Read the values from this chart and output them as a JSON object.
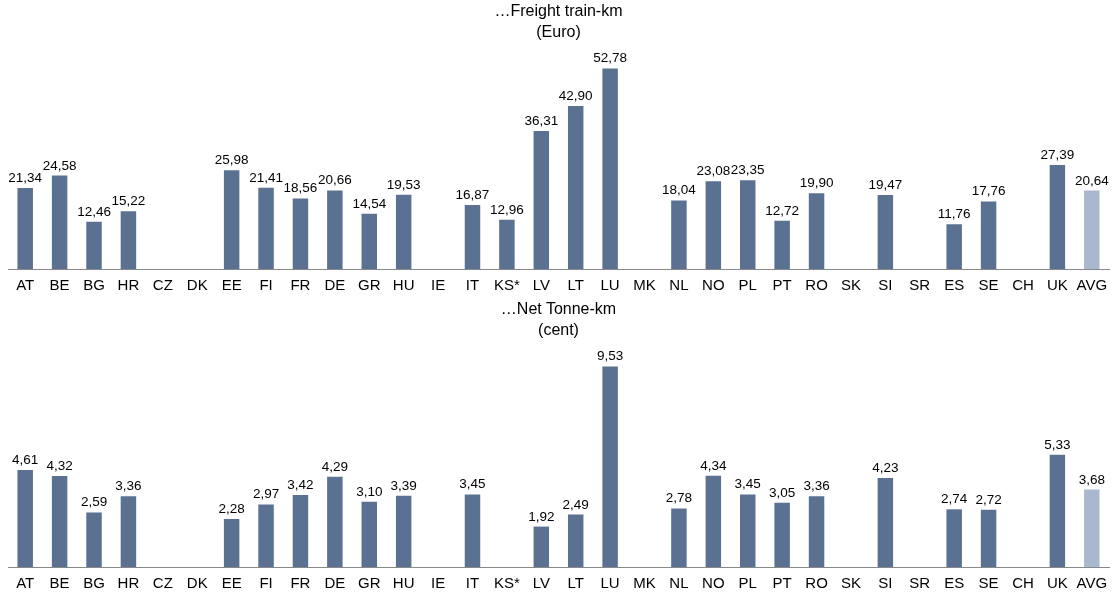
{
  "chart_data": [
    {
      "type": "bar",
      "title": "…Freight train-km",
      "subtitle": "(Euro)",
      "categories": [
        "AT",
        "BE",
        "BG",
        "HR",
        "CZ",
        "DK",
        "EE",
        "FI",
        "FR",
        "DE",
        "GR",
        "HU",
        "IE",
        "IT",
        "KS*",
        "LV",
        "LT",
        "LU",
        "MK",
        "NL",
        "NO",
        "PL",
        "PT",
        "RO",
        "SK",
        "SI",
        "SR",
        "ES",
        "SE",
        "CH",
        "UK",
        "AVG"
      ],
      "values": [
        21.34,
        24.58,
        12.46,
        15.22,
        null,
        null,
        25.98,
        21.41,
        18.56,
        20.66,
        14.54,
        19.53,
        null,
        16.87,
        12.96,
        36.31,
        42.9,
        52.78,
        null,
        18.04,
        23.08,
        23.35,
        12.72,
        19.9,
        null,
        19.47,
        null,
        11.76,
        17.76,
        null,
        27.39,
        20.64
      ],
      "value_labels": [
        "21,34",
        "24,58",
        "12,46",
        "15,22",
        null,
        null,
        "25,98",
        "21,41",
        "18,56",
        "20,66",
        "14,54",
        "19,53",
        null,
        "16,87",
        "12,96",
        "36,31",
        "42,90",
        "52,78",
        null,
        "18,04",
        "23,08",
        "23,35",
        "12,72",
        "19,90",
        null,
        "19,47",
        null,
        "11,76",
        "17,76",
        null,
        "27,39",
        "20,64"
      ],
      "colors": [
        "#5a7192",
        "#5a7192",
        "#5a7192",
        "#5a7192",
        "#5a7192",
        "#5a7192",
        "#5a7192",
        "#5a7192",
        "#5a7192",
        "#5a7192",
        "#5a7192",
        "#5a7192",
        "#5a7192",
        "#5a7192",
        "#5a7192",
        "#5a7192",
        "#5a7192",
        "#5a7192",
        "#5a7192",
        "#5a7192",
        "#5a7192",
        "#5a7192",
        "#5a7192",
        "#5a7192",
        "#5a7192",
        "#5a7192",
        "#5a7192",
        "#5a7192",
        "#5a7192",
        "#5a7192",
        "#5a7192",
        "#a9b8cf"
      ],
      "grid": false,
      "legend": false,
      "tick_labels": "x"
    },
    {
      "type": "bar",
      "title": "…Net Tonne-km",
      "subtitle": "(cent)",
      "categories": [
        "AT",
        "BE",
        "BG",
        "HR",
        "CZ",
        "DK",
        "EE",
        "FI",
        "FR",
        "DE",
        "GR",
        "HU",
        "IE",
        "IT",
        "KS*",
        "LV",
        "LT",
        "LU",
        "MK",
        "NL",
        "NO",
        "PL",
        "PT",
        "RO",
        "SK",
        "SI",
        "SR",
        "ES",
        "SE",
        "CH",
        "UK",
        "AVG"
      ],
      "values": [
        4.61,
        4.32,
        2.59,
        3.36,
        null,
        null,
        2.28,
        2.97,
        3.42,
        4.29,
        3.1,
        3.39,
        null,
        3.45,
        null,
        1.92,
        2.49,
        9.53,
        null,
        2.78,
        4.34,
        3.45,
        3.05,
        3.36,
        null,
        4.23,
        null,
        2.74,
        2.72,
        null,
        5.33,
        3.68
      ],
      "value_labels": [
        "4,61",
        "4,32",
        "2,59",
        "3,36",
        null,
        null,
        "2,28",
        "2,97",
        "3,42",
        "4,29",
        "3,10",
        "3,39",
        null,
        "3,45",
        null,
        "1,92",
        "2,49",
        "9,53",
        null,
        "2,78",
        "4,34",
        "3,45",
        "3,05",
        "3,36",
        null,
        "4,23",
        null,
        "2,74",
        "2,72",
        null,
        "5,33",
        "3,68"
      ],
      "colors": [
        "#5a7192",
        "#5a7192",
        "#5a7192",
        "#5a7192",
        "#5a7192",
        "#5a7192",
        "#5a7192",
        "#5a7192",
        "#5a7192",
        "#5a7192",
        "#5a7192",
        "#5a7192",
        "#5a7192",
        "#5a7192",
        "#5a7192",
        "#5a7192",
        "#5a7192",
        "#5a7192",
        "#5a7192",
        "#5a7192",
        "#5a7192",
        "#5a7192",
        "#5a7192",
        "#5a7192",
        "#5a7192",
        "#5a7192",
        "#5a7192",
        "#5a7192",
        "#5a7192",
        "#5a7192",
        "#5a7192",
        "#a9b8cf"
      ],
      "grid": false,
      "legend": false,
      "tick_labels": "x"
    }
  ]
}
